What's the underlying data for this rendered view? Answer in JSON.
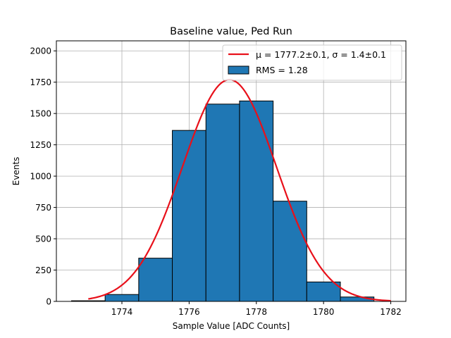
{
  "chart_data": {
    "type": "bar",
    "title": "Baseline value, Ped Run",
    "xlabel": "Sample Value [ADC Counts]",
    "ylabel": "Events",
    "xlim": [
      1772.05,
      1782.45
    ],
    "ylim": [
      0,
      2080
    ],
    "grid": true,
    "x_ticks": [
      1774,
      1776,
      1778,
      1780,
      1782
    ],
    "x_tick_labels": [
      "1774",
      "1776",
      "1778",
      "1780",
      "1782"
    ],
    "y_ticks": [
      0,
      250,
      500,
      750,
      1000,
      1250,
      1500,
      1750,
      2000
    ],
    "y_tick_labels": [
      "0",
      "250",
      "500",
      "750",
      "1000",
      "1250",
      "1500",
      "1750",
      "2000"
    ],
    "histogram": {
      "name": "RMS = 1.28",
      "color": "#1f77b4",
      "edge_color": "#000000",
      "bin_edges": [
        1772.5,
        1773.5,
        1774.5,
        1775.5,
        1776.5,
        1777.5,
        1778.5,
        1779.5,
        1780.5,
        1781.5
      ],
      "counts": [
        5,
        55,
        345,
        1365,
        1575,
        1600,
        800,
        155,
        35
      ]
    },
    "fit": {
      "name": "μ = 1777.2±0.1, σ = 1.4±0.1",
      "type": "gaussian",
      "color": "#e8101a",
      "amplitude": 1770,
      "mu": 1777.2,
      "sigma": 1.4,
      "x_range": [
        1773.0,
        1782.0
      ]
    },
    "legend": {
      "position": "top-right",
      "fit_label": "μ = 1777.2±0.1, σ = 1.4±0.1",
      "hist_label": "RMS = 1.28"
    }
  }
}
